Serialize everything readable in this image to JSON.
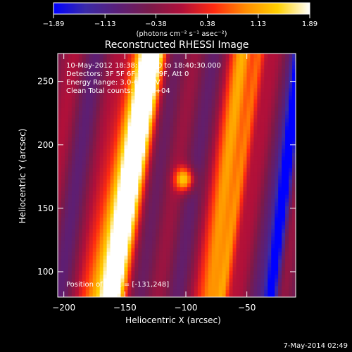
{
  "colorbar": {
    "ticks": [
      "-1.89",
      "-1.13",
      "-0.38",
      "0.38",
      "1.13",
      "1.89"
    ],
    "unit_label": "(photons cm⁻² s⁻¹ asec⁻²)",
    "stops": [
      "#0000ff",
      "#3a2aa8",
      "#5a1f78",
      "#7a1a4a",
      "#b0103a",
      "#ff2a10",
      "#ff8c00",
      "#ffd000",
      "#ffffff"
    ]
  },
  "footer": {
    "date": "7-May-2014 02:49"
  },
  "chart_data": {
    "type": "heatmap",
    "title": "Reconstructed RHESSI Image",
    "xlabel": "Heliocentric X (arcsec)",
    "ylabel": "Heliocentric Y (arcsec)",
    "xlim": [
      -205,
      -10
    ],
    "ylim": [
      80,
      272
    ],
    "xticks": [
      -200,
      -150,
      -100,
      -50
    ],
    "xtick_labels": [
      "-200",
      "-150",
      "-100",
      "-50"
    ],
    "yticks": [
      100,
      150,
      200,
      250
    ],
    "ytick_labels": [
      "100",
      "150",
      "200",
      "250"
    ],
    "vrange": [
      -1.89,
      1.89
    ],
    "annotations": [
      "10-May-2012 18:38:14.000 to 18:40:30.000",
      "Detectors: 3F 5F 6F 7F 8F 9F, Att 0",
      "Energy Range: 3.0-6.0 keV",
      "Clean    Total counts: 8.47E+04"
    ],
    "position_label": "Position of Peak = [-131,248]",
    "features": [
      {
        "name": "bright-fringe",
        "x_at_ymin": -172,
        "x_at_ymax": -135,
        "width": 12,
        "value": 1.75
      },
      {
        "name": "peak-fringe",
        "x_at_ymin": -160,
        "x_at_ymax": -126,
        "width": 9,
        "value": 1.89
      },
      {
        "name": "red-fringe-right",
        "x_at_ymin": -78,
        "x_at_ymax": -52,
        "width": 9,
        "value": 1.3
      },
      {
        "name": "orange-fringe-right",
        "x_at_ymin": -70,
        "x_at_ymax": -40,
        "width": 5,
        "value": 1.0
      },
      {
        "name": "blue-fringe",
        "x_at_ymin": -30,
        "x_at_ymax": -5,
        "width": 6,
        "value": -1.7
      },
      {
        "name": "compact-source",
        "x": -101,
        "y": 173,
        "width": 8,
        "value": 1.85
      }
    ]
  }
}
